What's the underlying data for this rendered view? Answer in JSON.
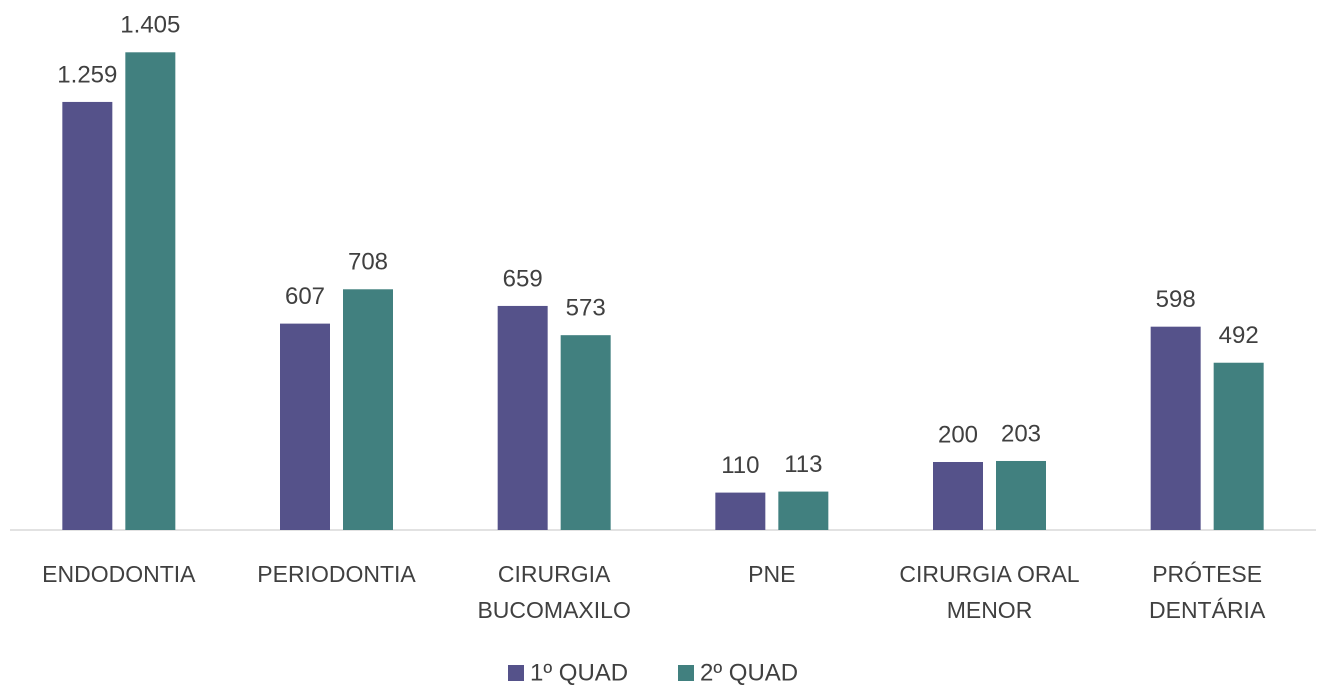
{
  "chart_data": {
    "type": "bar",
    "categories": [
      "ENDODONTIA",
      "PERIODONTIA",
      "CIRURGIA BUCOMAXILO",
      "PNE",
      "CIRURGIA ORAL MENOR",
      "PRÓTESE DENTÁRIA"
    ],
    "series": [
      {
        "name": "1º QUAD",
        "color": "#55528a",
        "values": [
          1259,
          607,
          659,
          110,
          200,
          598
        ],
        "value_labels": [
          "1.259",
          "607",
          "659",
          "110",
          "200",
          "598"
        ]
      },
      {
        "name": "2º QUAD",
        "color": "#41807f",
        "values": [
          1405,
          708,
          573,
          113,
          203,
          492
        ],
        "value_labels": [
          "1.405",
          "708",
          "573",
          "113",
          "203",
          "492"
        ]
      }
    ],
    "ylim": [
      0,
      1600
    ],
    "legend": "bottom"
  }
}
